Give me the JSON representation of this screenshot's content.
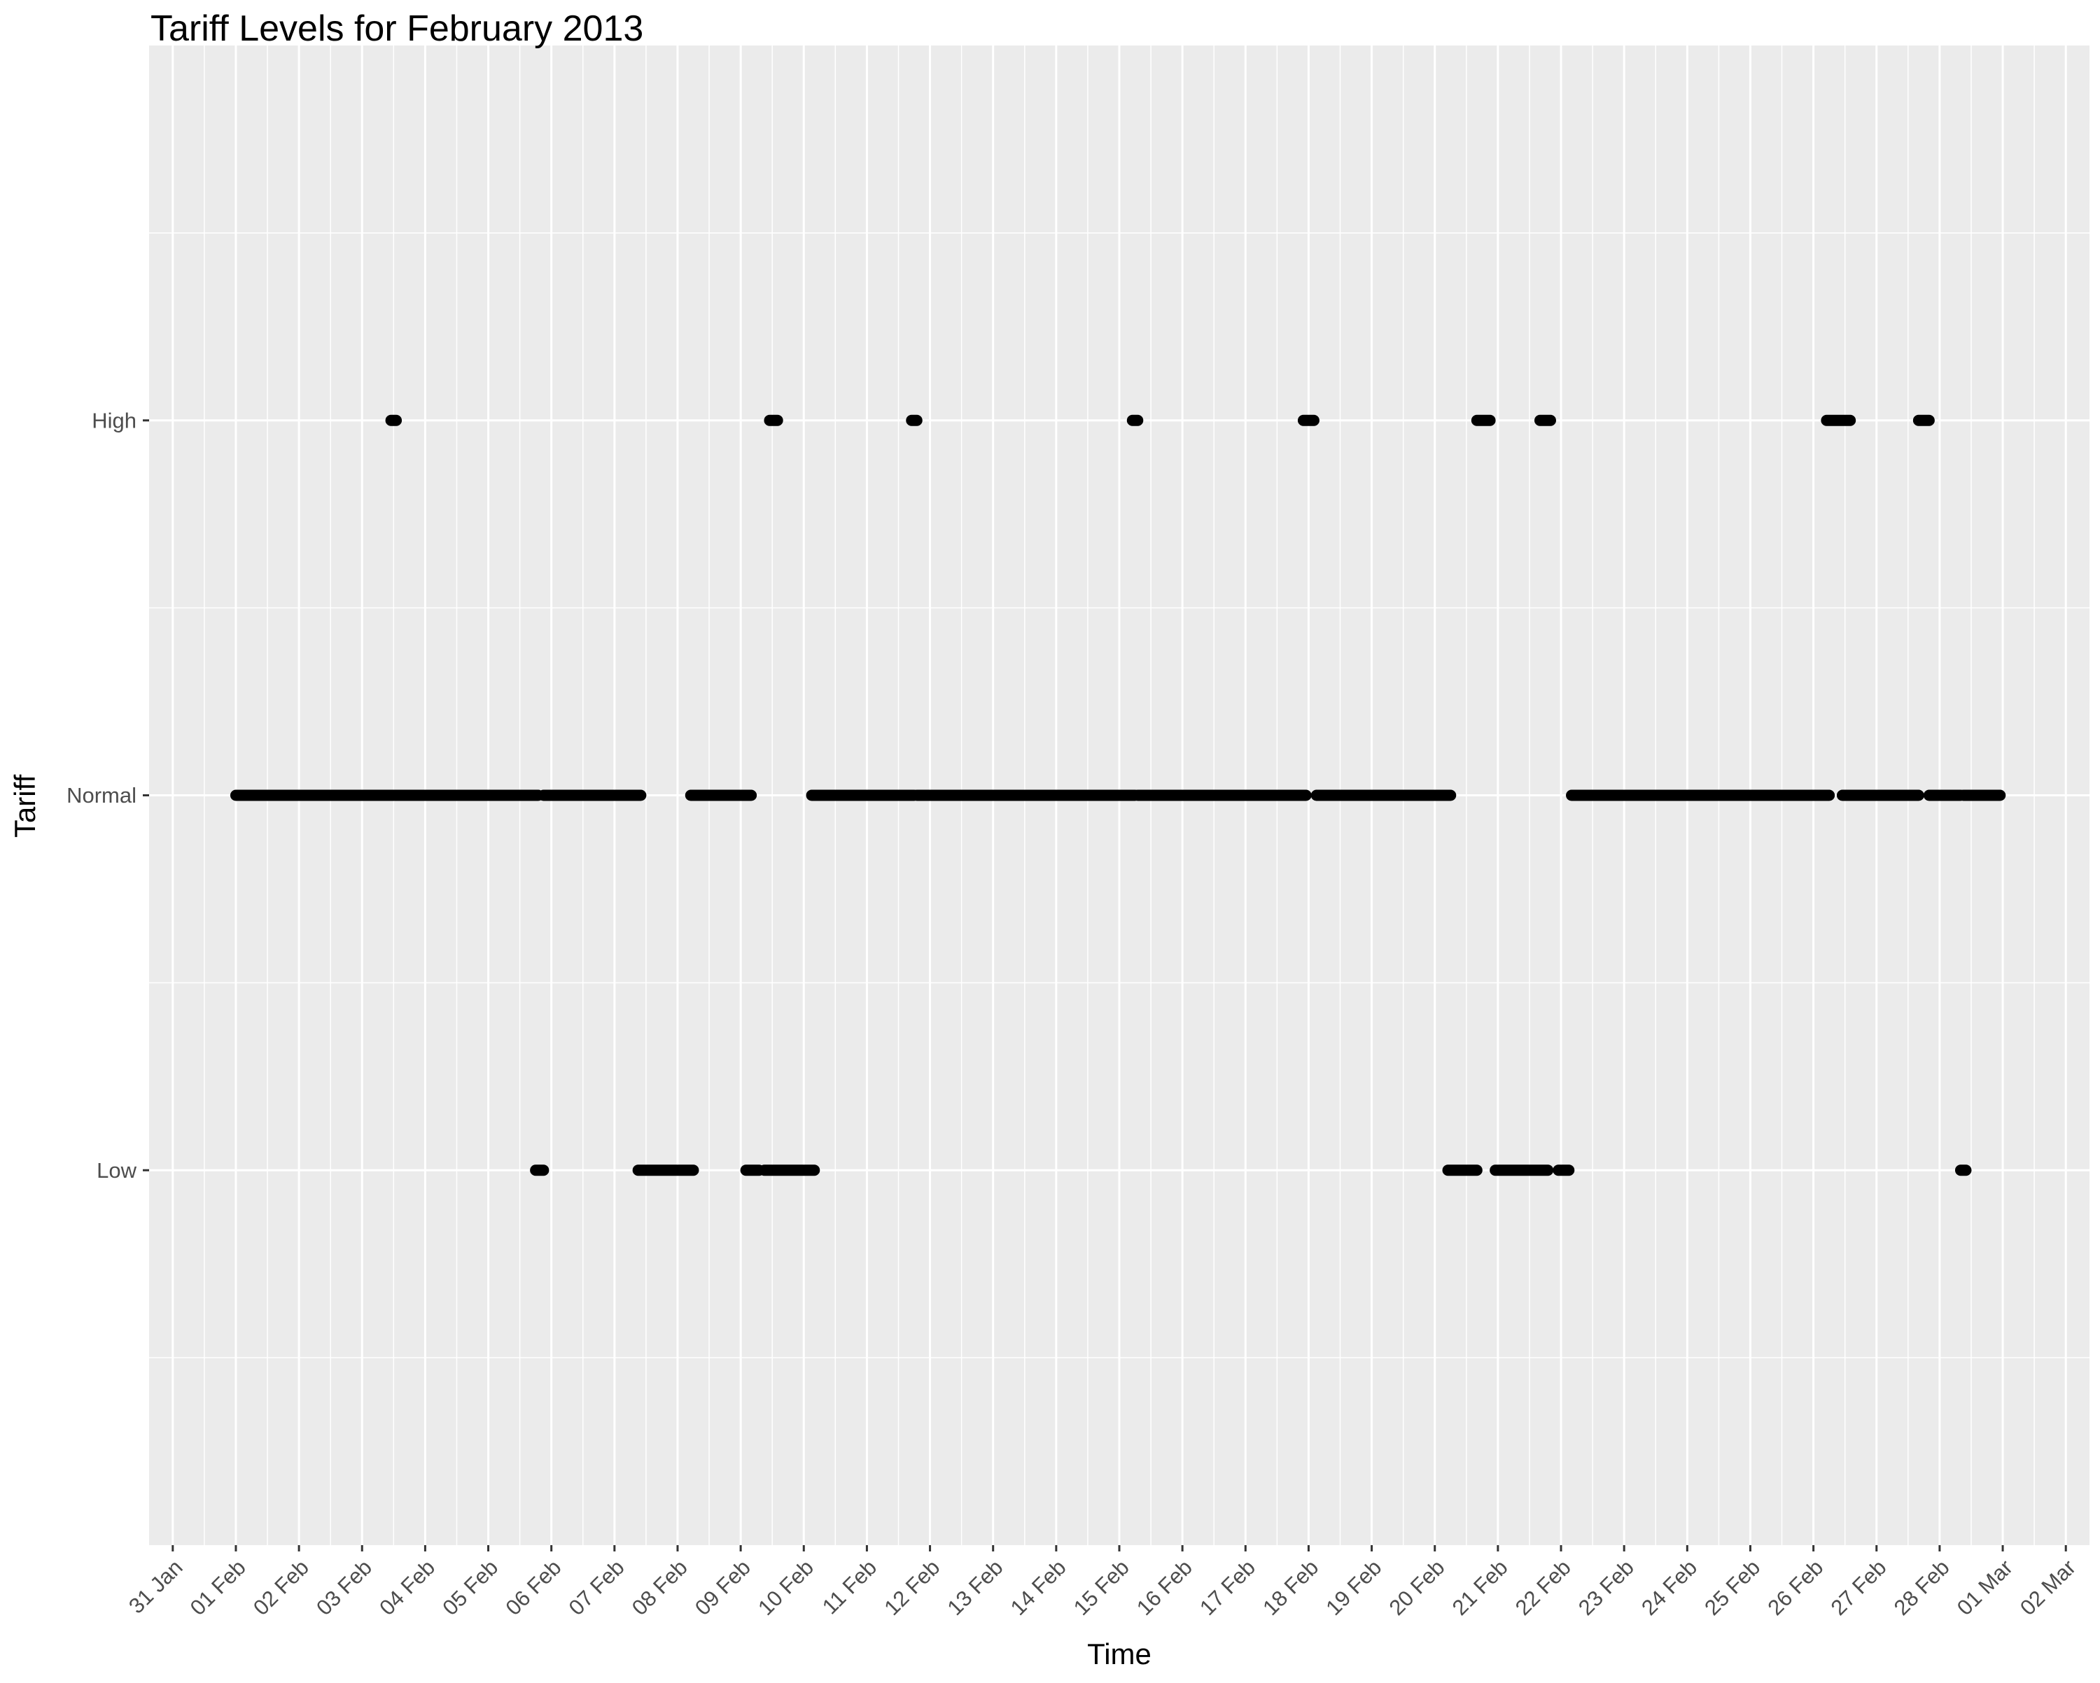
{
  "chart_data": {
    "type": "scatter",
    "title": "Tariff Levels for February 2013",
    "xlabel": "Time",
    "ylabel": "Tariff",
    "x_type": "date",
    "xlim": [
      "2013-01-30T15:00",
      "2013-03-02T09:00"
    ],
    "x_ticks": [
      "2013-01-31",
      "2013-02-01",
      "2013-02-02",
      "2013-02-03",
      "2013-02-04",
      "2013-02-05",
      "2013-02-06",
      "2013-02-07",
      "2013-02-08",
      "2013-02-09",
      "2013-02-10",
      "2013-02-11",
      "2013-02-12",
      "2013-02-13",
      "2013-02-14",
      "2013-02-15",
      "2013-02-16",
      "2013-02-17",
      "2013-02-18",
      "2013-02-19",
      "2013-02-20",
      "2013-02-21",
      "2013-02-22",
      "2013-02-23",
      "2013-02-24",
      "2013-02-25",
      "2013-02-26",
      "2013-02-27",
      "2013-02-28",
      "2013-03-01",
      "2013-03-02"
    ],
    "x_tick_labels": [
      "31 Jan",
      "01 Feb",
      "02 Feb",
      "03 Feb",
      "04 Feb",
      "05 Feb",
      "06 Feb",
      "07 Feb",
      "08 Feb",
      "09 Feb",
      "10 Feb",
      "11 Feb",
      "12 Feb",
      "13 Feb",
      "14 Feb",
      "15 Feb",
      "16 Feb",
      "17 Feb",
      "18 Feb",
      "19 Feb",
      "20 Feb",
      "21 Feb",
      "22 Feb",
      "23 Feb",
      "24 Feb",
      "25 Feb",
      "26 Feb",
      "27 Feb",
      "28 Feb",
      "01 Mar",
      "02 Mar"
    ],
    "y_categories": [
      "Low",
      "Normal",
      "High"
    ],
    "grid": true,
    "legend": "none",
    "point_color": "#000000",
    "panel_background": "#ebebeb",
    "grid_color": "#ffffff",
    "series": [
      {
        "values": [
          {
            "y": "Normal",
            "x_start": "2013-02-01T00:00",
            "x_end": "2013-02-03T12:00"
          },
          {
            "y": "Normal",
            "x_start": "2013-02-03T12:30",
            "x_end": "2013-02-05T19:00"
          },
          {
            "y": "Normal",
            "x_start": "2013-02-05T21:00",
            "x_end": "2013-02-07T10:00"
          },
          {
            "y": "Normal",
            "x_start": "2013-02-08T05:00",
            "x_end": "2013-02-09T04:00"
          },
          {
            "y": "Normal",
            "x_start": "2013-02-10T03:00",
            "x_end": "2013-02-11T18:00"
          },
          {
            "y": "Normal",
            "x_start": "2013-02-11T19:00",
            "x_end": "2013-02-15T06:00"
          },
          {
            "y": "Normal",
            "x_start": "2013-02-15T07:00",
            "x_end": "2013-02-17T23:00"
          },
          {
            "y": "Normal",
            "x_start": "2013-02-18T03:00",
            "x_end": "2013-02-20T06:00"
          },
          {
            "y": "Normal",
            "x_start": "2013-02-22T04:00",
            "x_end": "2013-02-26T06:00"
          },
          {
            "y": "Normal",
            "x_start": "2013-02-26T11:00",
            "x_end": "2013-02-27T16:00"
          },
          {
            "y": "Normal",
            "x_start": "2013-02-27T20:00",
            "x_end": "2013-02-28T08:00"
          },
          {
            "y": "Normal",
            "x_start": "2013-02-28T09:00",
            "x_end": "2013-02-28T23:00"
          },
          {
            "y": "High",
            "x_start": "2013-02-03T11:00",
            "x_end": "2013-02-03T13:00"
          },
          {
            "y": "High",
            "x_start": "2013-02-09T11:00",
            "x_end": "2013-02-09T14:00"
          },
          {
            "y": "High",
            "x_start": "2013-02-11T17:00",
            "x_end": "2013-02-11T19:00"
          },
          {
            "y": "High",
            "x_start": "2013-02-15T05:00",
            "x_end": "2013-02-15T07:00"
          },
          {
            "y": "High",
            "x_start": "2013-02-17T22:00",
            "x_end": "2013-02-18T02:00"
          },
          {
            "y": "High",
            "x_start": "2013-02-20T16:00",
            "x_end": "2013-02-20T21:00"
          },
          {
            "y": "High",
            "x_start": "2013-02-21T16:00",
            "x_end": "2013-02-21T20:00"
          },
          {
            "y": "High",
            "x_start": "2013-02-26T05:00",
            "x_end": "2013-02-26T14:00"
          },
          {
            "y": "High",
            "x_start": "2013-02-27T16:00",
            "x_end": "2013-02-27T20:00"
          },
          {
            "y": "Low",
            "x_start": "2013-02-05T18:00",
            "x_end": "2013-02-05T21:00"
          },
          {
            "y": "Low",
            "x_start": "2013-02-07T09:00",
            "x_end": "2013-02-08T06:00"
          },
          {
            "y": "Low",
            "x_start": "2013-02-09T02:00",
            "x_end": "2013-02-09T07:00"
          },
          {
            "y": "Low",
            "x_start": "2013-02-09T09:00",
            "x_end": "2013-02-10T04:00"
          },
          {
            "y": "Low",
            "x_start": "2013-02-20T05:00",
            "x_end": "2013-02-20T16:00"
          },
          {
            "y": "Low",
            "x_start": "2013-02-20T23:00",
            "x_end": "2013-02-21T19:00"
          },
          {
            "y": "Low",
            "x_start": "2013-02-21T23:00",
            "x_end": "2013-02-22T03:00"
          },
          {
            "y": "Low",
            "x_start": "2013-02-28T08:00",
            "x_end": "2013-02-28T10:00"
          }
        ]
      }
    ]
  }
}
